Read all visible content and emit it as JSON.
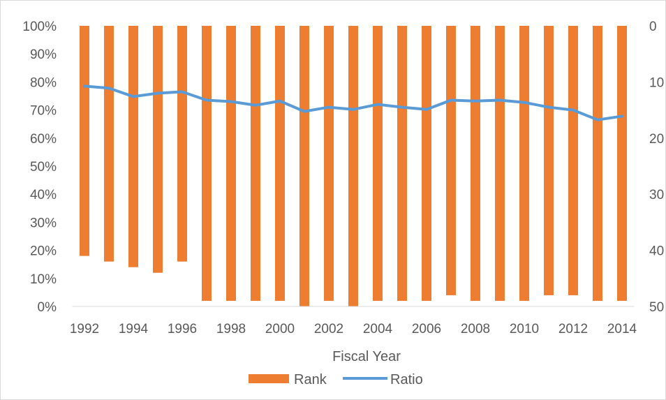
{
  "chart_data": {
    "type": "bar",
    "title": "",
    "xlabel": "Fiscal Year",
    "ylabel": "",
    "y2label": "",
    "x": [
      1992,
      1993,
      1994,
      1995,
      1996,
      1997,
      1998,
      1999,
      2000,
      2001,
      2002,
      2003,
      2004,
      2005,
      2006,
      2007,
      2008,
      2009,
      2010,
      2011,
      2012,
      2013,
      2014
    ],
    "x_tick_labels": [
      "1992",
      "1994",
      "1996",
      "1998",
      "2000",
      "2002",
      "2004",
      "2006",
      "2008",
      "2010",
      "2012",
      "2014"
    ],
    "y_left": {
      "range": [
        0,
        1
      ],
      "ticks": [
        "0%",
        "10%",
        "20%",
        "30%",
        "40%",
        "50%",
        "60%",
        "70%",
        "80%",
        "90%",
        "100%"
      ]
    },
    "y_right": {
      "range": [
        0,
        50
      ],
      "inverted": true,
      "ticks": [
        "0",
        "10",
        "20",
        "30",
        "40",
        "50"
      ]
    },
    "series": [
      {
        "name": "Rank",
        "type": "bar",
        "axis": "right",
        "color": "#ED7D31",
        "values": [
          41,
          42,
          43,
          44,
          42,
          49,
          49,
          49,
          49,
          50,
          49,
          50,
          49,
          49,
          49,
          48,
          49,
          49,
          49,
          48,
          48,
          49,
          49
        ]
      },
      {
        "name": "Ratio",
        "type": "line",
        "axis": "left",
        "color": "#5B9BD5",
        "values": [
          0.785,
          0.778,
          0.748,
          0.76,
          0.765,
          0.735,
          0.73,
          0.717,
          0.732,
          0.695,
          0.71,
          0.702,
          0.72,
          0.71,
          0.702,
          0.735,
          0.732,
          0.735,
          0.727,
          0.71,
          0.7,
          0.665,
          0.678
        ]
      }
    ],
    "grid": false,
    "legend": "bottom"
  }
}
